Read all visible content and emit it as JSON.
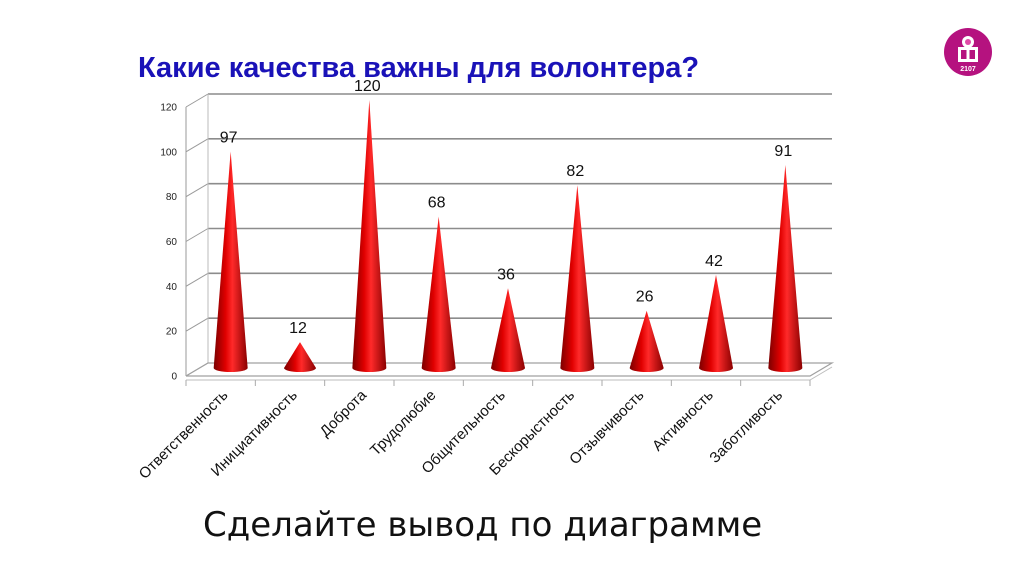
{
  "slide": {
    "title": "Какие качества важны для волонтера?",
    "subtitle": "Сделайте вывод по диаграмме",
    "logo": {
      "icon": "logo-2107-icon",
      "text": "2107",
      "color": "#b5127f"
    },
    "accent_color": "#1a12b8",
    "bar_color": "#cc0000"
  },
  "chart_data": {
    "type": "bar",
    "style": "3d-cone",
    "title": "Какие качества важны для волонтера?",
    "xlabel": "",
    "ylabel": "",
    "categories": [
      "Ответственность",
      "Инициативность",
      "Доброта",
      "Трудолюбие",
      "Общительность",
      "Бескорыстность",
      "Отзывчивость",
      "Активность",
      "Заботливость"
    ],
    "values": [
      97,
      12,
      120,
      68,
      36,
      82,
      26,
      42,
      91
    ],
    "ylim": [
      0,
      120
    ],
    "yticks": [
      0,
      20,
      40,
      60,
      80,
      100,
      120
    ],
    "grid": true,
    "legend": null,
    "data_labels": true
  }
}
